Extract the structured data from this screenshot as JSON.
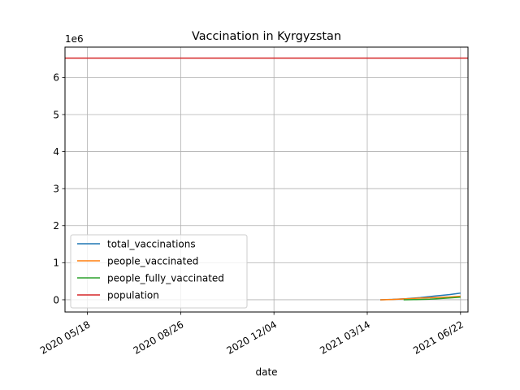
{
  "chart_data": {
    "type": "line",
    "title": "Vaccination in Kyrgyzstan",
    "xlabel": "date",
    "ylabel": "",
    "y_offset_label": "1e6",
    "x_type": "date",
    "xlim": [
      "2020-04-24",
      "2021-06-30"
    ],
    "ylim": [
      -330000,
      6820000
    ],
    "x_ticks": [
      "2020-05-18",
      "2020-08-26",
      "2020-12-04",
      "2021-03-14",
      "2021-06-22"
    ],
    "x_tick_labels": [
      "2020 05/18",
      "2020 08/26",
      "2020 12/04",
      "2021 03/14",
      "2021 06/22"
    ],
    "y_ticks": [
      0,
      1000000,
      2000000,
      3000000,
      4000000,
      5000000,
      6000000
    ],
    "y_tick_labels": [
      "0",
      "1",
      "2",
      "3",
      "4",
      "5",
      "6"
    ],
    "grid": true,
    "legend_position": "lower-left",
    "series": [
      {
        "name": "total_vaccinations",
        "color": "#1f77b4",
        "points": [
          [
            "2021-03-28",
            0
          ],
          [
            "2021-04-10",
            10000
          ],
          [
            "2021-04-25",
            30000
          ],
          [
            "2021-05-10",
            60000
          ],
          [
            "2021-05-25",
            100000
          ],
          [
            "2021-06-10",
            140000
          ],
          [
            "2021-06-22",
            180000
          ]
        ]
      },
      {
        "name": "people_vaccinated",
        "color": "#ff7f0e",
        "points": [
          [
            "2021-03-28",
            0
          ],
          [
            "2021-04-10",
            8000
          ],
          [
            "2021-04-25",
            25000
          ],
          [
            "2021-05-10",
            45000
          ],
          [
            "2021-05-25",
            60000
          ],
          [
            "2021-06-10",
            75000
          ],
          [
            "2021-06-22",
            95000
          ]
        ]
      },
      {
        "name": "people_fully_vaccinated",
        "color": "#2ca02c",
        "points": [
          [
            "2021-04-22",
            0
          ],
          [
            "2021-05-05",
            5000
          ],
          [
            "2021-05-20",
            15000
          ],
          [
            "2021-06-05",
            40000
          ],
          [
            "2021-06-22",
            70000
          ]
        ]
      },
      {
        "name": "population",
        "color": "#d62728",
        "points": [
          [
            "2020-04-24",
            6524000
          ],
          [
            "2021-06-30",
            6524000
          ]
        ]
      }
    ]
  }
}
